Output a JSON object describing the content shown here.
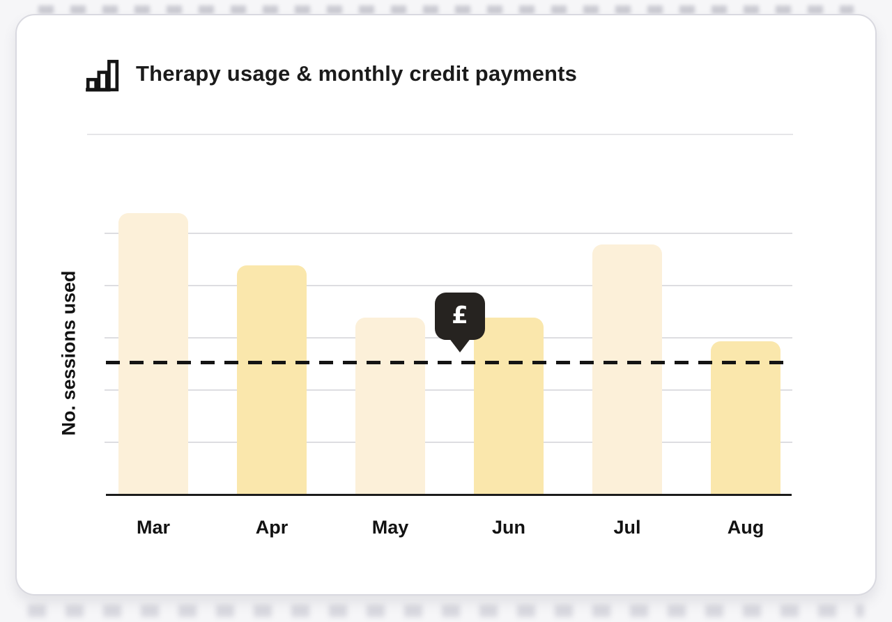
{
  "header": {
    "title": "Therapy usage & monthly credit payments",
    "icon": "bar-chart-icon"
  },
  "chart_data": {
    "type": "bar",
    "title": "Therapy usage & monthly credit payments",
    "xlabel": "",
    "ylabel": "No. sessions used",
    "categories": [
      "Mar",
      "Apr",
      "May",
      "Jun",
      "Jul",
      "Aug"
    ],
    "values": [
      5.4,
      4.4,
      3.4,
      3.4,
      4.8,
      2.95
    ],
    "value_unit": "gridline intervals (y axis has no numeric tick labels)",
    "ylim": [
      0,
      6.2
    ],
    "grid": true,
    "gridline_values": [
      1,
      2,
      3,
      4,
      5
    ],
    "legend": "none",
    "bar_style": {
      "pattern": [
        "light",
        "dark",
        "light",
        "dark",
        "light",
        "dark"
      ],
      "light_color": "#FCF0D9",
      "dark_color": "#FAE7AC",
      "corner_radius_px": 14
    },
    "reference_line": {
      "value": 2.55,
      "style": "dashed",
      "color": "#141414",
      "marker_label": "£",
      "marker_bg": "#262320",
      "marker_text_color": "#FFFFFF",
      "marker_near_month": "Jun"
    }
  }
}
